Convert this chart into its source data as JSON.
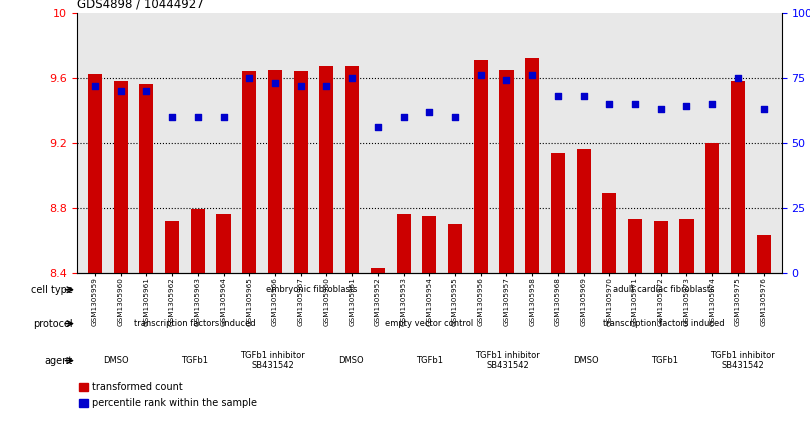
{
  "title": "GDS4898 / 10444927",
  "samples": [
    "GSM1305959",
    "GSM1305960",
    "GSM1305961",
    "GSM1305962",
    "GSM1305963",
    "GSM1305964",
    "GSM1305965",
    "GSM1305966",
    "GSM1305967",
    "GSM1305950",
    "GSM1305951",
    "GSM1305952",
    "GSM1305953",
    "GSM1305954",
    "GSM1305955",
    "GSM1305956",
    "GSM1305957",
    "GSM1305958",
    "GSM1305968",
    "GSM1305969",
    "GSM1305970",
    "GSM1305971",
    "GSM1305972",
    "GSM1305973",
    "GSM1305974",
    "GSM1305975",
    "GSM1305976"
  ],
  "bar_values": [
    9.62,
    9.58,
    9.56,
    8.72,
    8.79,
    8.76,
    9.64,
    9.65,
    9.64,
    9.67,
    9.67,
    8.43,
    8.76,
    8.75,
    8.7,
    9.71,
    9.65,
    9.72,
    9.14,
    9.16,
    8.89,
    8.73,
    8.72,
    8.73,
    9.2,
    9.58,
    8.63
  ],
  "dot_values": [
    72,
    70,
    70,
    60,
    60,
    60,
    75,
    73,
    72,
    72,
    75,
    56,
    60,
    62,
    60,
    76,
    74,
    76,
    68,
    68,
    65,
    65,
    63,
    64,
    65,
    75,
    63
  ],
  "ylim_left": [
    8.4,
    10.0
  ],
  "ylim_right": [
    0,
    100
  ],
  "yticks_left": [
    8.4,
    8.8,
    9.2,
    9.6,
    10.0
  ],
  "yticks_right": [
    0,
    25,
    50,
    75,
    100
  ],
  "ytick_labels_left": [
    "8.4",
    "8.8",
    "9.2",
    "9.6",
    "10"
  ],
  "ytick_labels_right": [
    "0",
    "25",
    "50",
    "75",
    "100%"
  ],
  "hlines": [
    8.8,
    9.2,
    9.6
  ],
  "bar_color": "#cc0000",
  "dot_color": "#0000cc",
  "bg_color": "#e8e8e8",
  "cell_type_groups": [
    {
      "label": "embryonic fibroblasts",
      "start": 0,
      "end": 17,
      "color": "#90ee90"
    },
    {
      "label": "adult cardiac fibroblasts",
      "start": 18,
      "end": 26,
      "color": "#33cc33"
    }
  ],
  "protocol_groups": [
    {
      "label": "transcription factors induced",
      "start": 0,
      "end": 8,
      "color": "#aaaadd"
    },
    {
      "label": "empty vector control",
      "start": 9,
      "end": 17,
      "color": "#6666bb"
    },
    {
      "label": "transcription factors induced",
      "start": 18,
      "end": 26,
      "color": "#aaaadd"
    }
  ],
  "agent_groups": [
    {
      "label": "DMSO",
      "start": 0,
      "end": 2,
      "color": "#ffbbbb"
    },
    {
      "label": "TGFb1",
      "start": 3,
      "end": 5,
      "color": "#ffbbbb"
    },
    {
      "label": "TGFb1 inhibitor\nSB431542",
      "start": 6,
      "end": 8,
      "color": "#cc7777"
    },
    {
      "label": "DMSO",
      "start": 9,
      "end": 11,
      "color": "#ffbbbb"
    },
    {
      "label": "TGFb1",
      "start": 12,
      "end": 14,
      "color": "#ffbbbb"
    },
    {
      "label": "TGFb1 inhibitor\nSB431542",
      "start": 15,
      "end": 17,
      "color": "#cc7777"
    },
    {
      "label": "DMSO",
      "start": 18,
      "end": 20,
      "color": "#ffbbbb"
    },
    {
      "label": "TGFb1",
      "start": 21,
      "end": 23,
      "color": "#ffbbbb"
    },
    {
      "label": "TGFb1 inhibitor\nSB431542",
      "start": 24,
      "end": 26,
      "color": "#cc7777"
    }
  ],
  "legend_items": [
    {
      "label": "transformed count",
      "color": "#cc0000"
    },
    {
      "label": "percentile rank within the sample",
      "color": "#0000cc"
    }
  ]
}
